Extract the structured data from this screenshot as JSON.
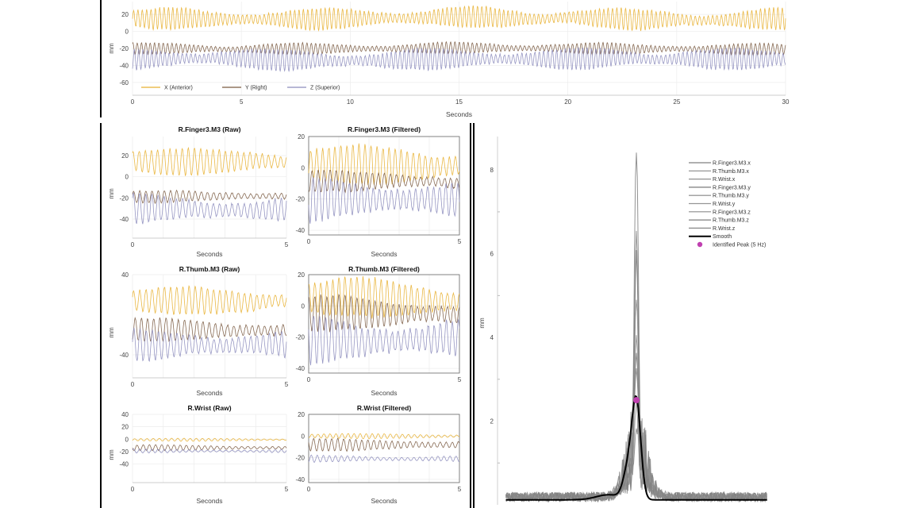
{
  "chart_data": [
    {
      "id": "overview",
      "type": "line",
      "xlabel": "Seconds",
      "ylabel": "mm",
      "xlim": [
        0,
        30
      ],
      "ylim": [
        -75,
        35
      ],
      "xticks": [
        0,
        5,
        10,
        15,
        20,
        25,
        30
      ],
      "yticks": [
        20,
        0,
        -20,
        -40,
        -60
      ],
      "grid": true,
      "legend": "bottom-left",
      "frequency_hz": 5,
      "series": [
        {
          "name": "X (Anterior)",
          "color": "#e8b030",
          "mean": 15,
          "amplitude": 11
        },
        {
          "name": "Y (Right)",
          "color": "#7a5a40",
          "mean": -20,
          "amplitude": 6
        },
        {
          "name": "Z (Superior)",
          "color": "#8c8cbc",
          "mean": -33,
          "amplitude": 11
        }
      ]
    },
    {
      "id": "finger-raw",
      "type": "line",
      "title": "R.Finger3.M3 (Raw)",
      "xlabel": "Seconds",
      "ylabel": "mm",
      "xlim": [
        0,
        5
      ],
      "ylim": [
        -58,
        38
      ],
      "xticks": [
        0,
        5
      ],
      "yticks": [
        20,
        0,
        -20,
        -40
      ],
      "grid": true,
      "frequency_hz": 5,
      "series": [
        {
          "color": "#e8b030",
          "mean": 15,
          "amplitude": 11
        },
        {
          "color": "#7a5a40",
          "mean": -19,
          "amplitude": 5
        },
        {
          "color": "#8c8cbc",
          "mean": -30,
          "amplitude": 13
        }
      ]
    },
    {
      "id": "finger-filtered",
      "type": "line",
      "title": "R.Finger3.M3 (Filtered)",
      "xlabel": "Seconds",
      "ylabel": "",
      "xlim": [
        0,
        5
      ],
      "ylim": [
        -43,
        20
      ],
      "xticks": [
        0,
        5
      ],
      "yticks": [
        20,
        0,
        -20,
        -40
      ],
      "grid": true,
      "frequency_hz": 5,
      "series": [
        {
          "color": "#e8b030",
          "mean": 2,
          "amplitude": 11
        },
        {
          "color": "#7a5a40",
          "mean": -9,
          "amplitude": 6
        },
        {
          "color": "#8c8cbc",
          "mean": -21,
          "amplitude": 13
        }
      ]
    },
    {
      "id": "thumb-raw",
      "type": "line",
      "title": "R.Thumb.M3 (Raw)",
      "xlabel": "Seconds",
      "ylabel": "mm",
      "xlim": [
        0,
        5
      ],
      "ylim": [
        -63,
        40
      ],
      "xticks": [
        0,
        5
      ],
      "yticks": [
        40,
        -40
      ],
      "grid": true,
      "frequency_hz": 5,
      "series": [
        {
          "color": "#e8b030",
          "mean": 14,
          "amplitude": 12
        },
        {
          "color": "#7a5a40",
          "mean": -15,
          "amplitude": 10
        },
        {
          "color": "#8c8cbc",
          "mean": -30,
          "amplitude": 15
        }
      ]
    },
    {
      "id": "thumb-filtered",
      "type": "line",
      "title": "R.Thumb.M3 (Filtered)",
      "xlabel": "Seconds",
      "ylabel": "",
      "xlim": [
        0,
        5
      ],
      "ylim": [
        -43,
        20
      ],
      "xticks": [
        0,
        5
      ],
      "yticks": [
        20,
        0,
        -20,
        -40
      ],
      "grid": true,
      "frequency_hz": 5,
      "series": [
        {
          "color": "#e8b030",
          "mean": 5,
          "amplitude": 11
        },
        {
          "color": "#7a5a40",
          "mean": -5,
          "amplitude": 10
        },
        {
          "color": "#8c8cbc",
          "mean": -22,
          "amplitude": 14
        }
      ]
    },
    {
      "id": "wrist-raw",
      "type": "line",
      "title": "R.Wrist (Raw)",
      "xlabel": "Seconds",
      "ylabel": "mm",
      "xlim": [
        0,
        5
      ],
      "ylim": [
        -70,
        40
      ],
      "xticks": [
        0,
        5
      ],
      "yticks": [
        40,
        20,
        0,
        -20,
        -40
      ],
      "grid": true,
      "frequency_hz": 5,
      "series": [
        {
          "color": "#e8b030",
          "mean": -1,
          "amplitude": 2
        },
        {
          "color": "#7a5a40",
          "mean": -14,
          "amplitude": 4
        },
        {
          "color": "#8c8cbc",
          "mean": -19,
          "amplitude": 3
        }
      ]
    },
    {
      "id": "wrist-filtered",
      "type": "line",
      "title": "R.Wrist (Filtered)",
      "xlabel": "Seconds",
      "ylabel": "",
      "xlim": [
        0,
        5
      ],
      "ylim": [
        -43,
        20
      ],
      "xticks": [
        0,
        5
      ],
      "yticks": [
        20,
        0,
        -20,
        -40
      ],
      "grid": true,
      "frequency_hz": 5,
      "series": [
        {
          "color": "#e8b030",
          "mean": 0,
          "amplitude": 2
        },
        {
          "color": "#7a5a40",
          "mean": -8,
          "amplitude": 5
        },
        {
          "color": "#8c8cbc",
          "mean": -21,
          "amplitude": 3
        }
      ]
    },
    {
      "id": "spectrum",
      "type": "line",
      "ylabel": "mm",
      "xlim": [
        0,
        10
      ],
      "ylim": [
        0,
        8.8
      ],
      "yticks": [
        8,
        6,
        4,
        2
      ],
      "grid": false,
      "legend": "top-right",
      "series": [
        {
          "name": "R.Finger3.M3.x",
          "color": "#808080",
          "peak": 8.3
        },
        {
          "name": "R.Thumb.M3.x",
          "color": "#8a8a8a",
          "peak": 6.3
        },
        {
          "name": "R.Wrist.x",
          "color": "#909090",
          "peak": 3.9
        },
        {
          "name": "R.Finger3.M3.y",
          "color": "#7a7a7a",
          "peak": 5.8
        },
        {
          "name": "R.Thumb.M3.y",
          "color": "#858585",
          "peak": 3.1
        },
        {
          "name": "R.Wrist.y",
          "color": "#959595",
          "peak": 2.2
        },
        {
          "name": "R.Finger3.M3.z",
          "color": "#8c8c8c",
          "peak": 4.8
        },
        {
          "name": "R.Thumb.M3.z",
          "color": "#7f7f7f",
          "peak": 3.5
        },
        {
          "name": "R.Wrist.z",
          "color": "#888888",
          "peak": 1.6
        },
        {
          "name": "Smooth",
          "color": "#000000",
          "peak": 2.4
        }
      ],
      "identified_peak": {
        "name": "Identified Peak (5 Hz)",
        "x": 5,
        "y": 2.5,
        "color": "#c040b0"
      }
    }
  ]
}
